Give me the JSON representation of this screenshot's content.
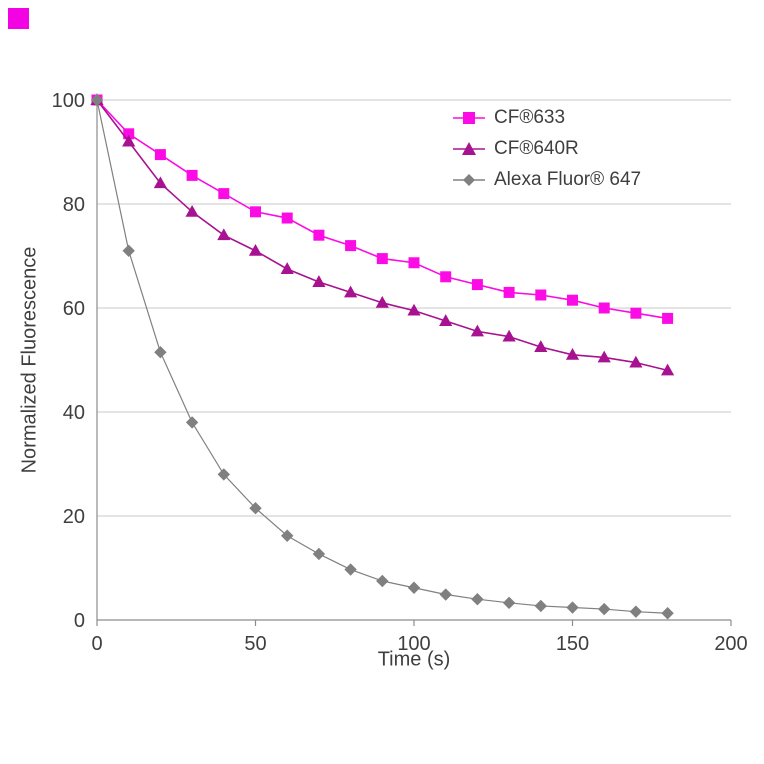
{
  "logo": {
    "color": "#f303e3"
  },
  "chart_data": {
    "type": "line",
    "title": "",
    "xlabel": "Time (s)",
    "ylabel": "Normalized Fluorescence",
    "xlim": [
      0,
      200
    ],
    "ylim": [
      0,
      100
    ],
    "x_ticks": [
      0,
      50,
      100,
      150,
      200
    ],
    "y_ticks": [
      0,
      20,
      40,
      60,
      80,
      100
    ],
    "grid": "horizontal-only",
    "grid_color": "#c9c9c9",
    "axis_color": "#8c8c8c",
    "legend_position": "top-right-inside",
    "x": [
      0,
      10,
      20,
      30,
      40,
      50,
      60,
      70,
      80,
      90,
      100,
      110,
      120,
      130,
      140,
      150,
      160,
      170,
      180
    ],
    "series": [
      {
        "name": "CF®633",
        "marker": "square",
        "color": "#fb0ce4",
        "values": [
          100,
          93.5,
          89.5,
          85.5,
          82,
          78.5,
          77.3,
          74,
          72,
          69.5,
          68.7,
          66,
          64.5,
          63,
          62.5,
          61.5,
          60,
          59,
          58
        ]
      },
      {
        "name": "CF®640R",
        "marker": "triangle",
        "color": "#a81291",
        "values": [
          100,
          92,
          84,
          78.5,
          74,
          71,
          67.5,
          65,
          63,
          61,
          59.5,
          57.5,
          55.5,
          54.5,
          52.5,
          51,
          50.5,
          49.5,
          48
        ]
      },
      {
        "name": "Alexa Fluor® 647",
        "marker": "diamond",
        "color": "#808080",
        "values": [
          100,
          71,
          51.5,
          38,
          28,
          21.5,
          16.2,
          12.7,
          9.7,
          7.5,
          6.2,
          4.9,
          4,
          3.3,
          2.7,
          2.4,
          2.1,
          1.6,
          1.3
        ]
      }
    ]
  }
}
